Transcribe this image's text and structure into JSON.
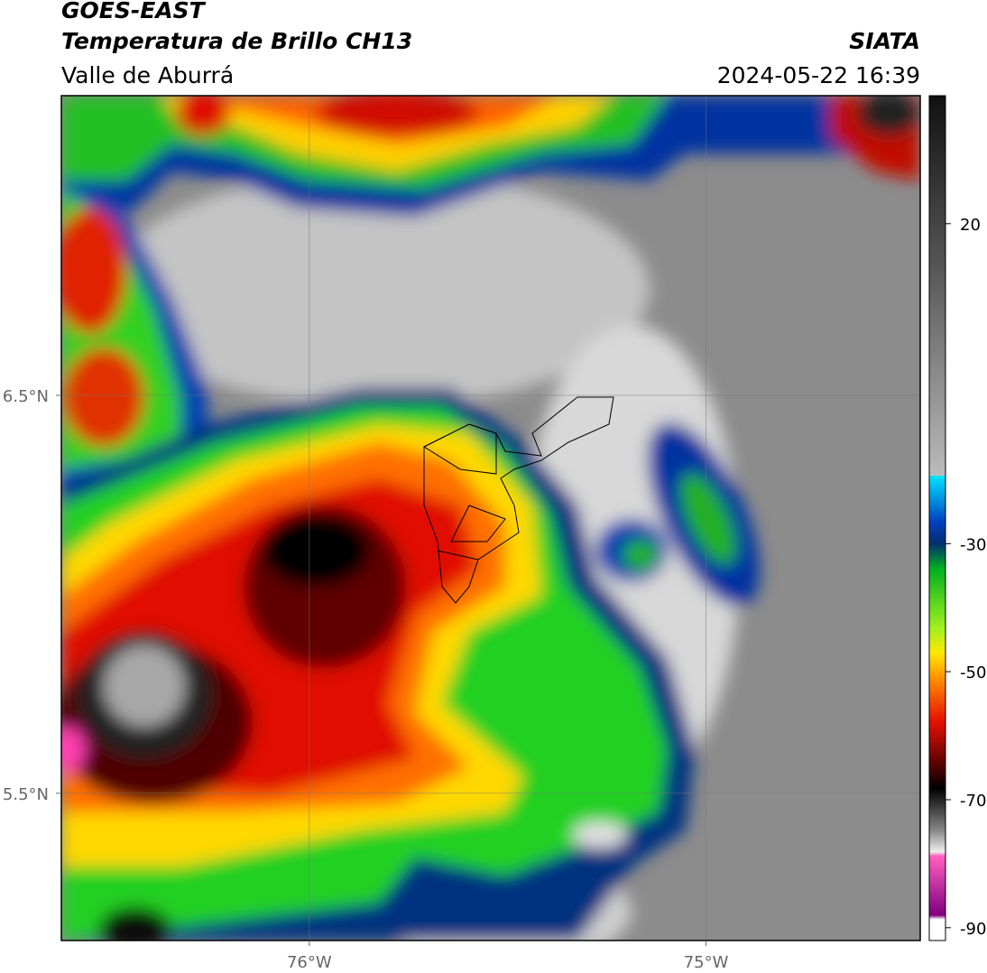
{
  "header": {
    "title": "GOES-EAST",
    "subtitle": "Temperatura de Brillo CH13",
    "source": "SIATA",
    "region": "Valle de Aburrá",
    "datetime": "2024-05-22 16:39"
  },
  "map": {
    "xlim": [
      -76.625,
      -74.46
    ],
    "ylim": [
      5.13,
      7.253
    ],
    "xticks": [
      {
        "value": -76,
        "label": "76°W"
      },
      {
        "value": -75,
        "label": "75°W"
      }
    ],
    "yticks": [
      {
        "value": 6.5,
        "label": "6.5°N"
      },
      {
        "value": 5.5,
        "label": "5.5°N"
      }
    ],
    "grid": true
  },
  "colorbar": {
    "lim": [
      -92,
      40
    ],
    "ticks": [
      20,
      -30,
      -50,
      -70,
      -90
    ]
  }
}
